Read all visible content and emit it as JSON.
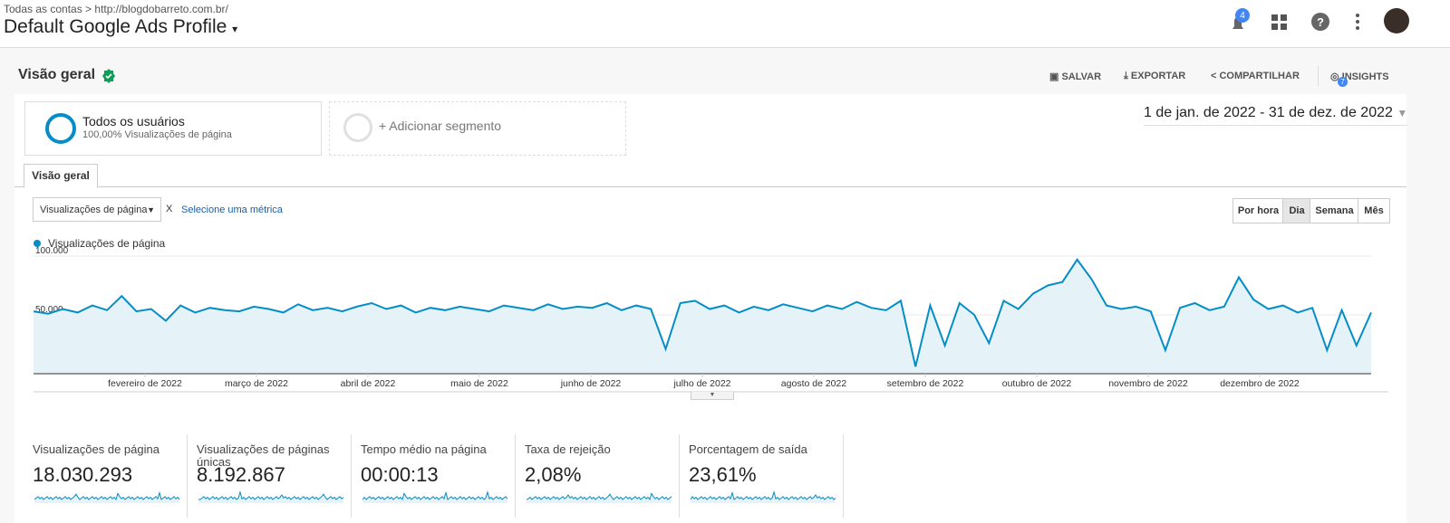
{
  "header": {
    "breadcrumb_root": "Todas as contas",
    "breadcrumb_property": "http://blogdobarreto.com.br/",
    "view_name": "Default Google Ads Profile",
    "notifications": 4
  },
  "toolbar": {
    "title": "Visão geral",
    "save": "SALVAR",
    "export": "EXPORTAR",
    "share": "COMPARTILHAR",
    "insights": "INSIGHTS",
    "insights_count": 7
  },
  "segments": {
    "active_name": "Todos os usuários",
    "active_detail": "100,00% Visualizações de página",
    "add": "+ Adicionar segmento"
  },
  "date_range": "1 de jan. de 2022 - 31 de dez. de 2022",
  "tab": "Visão geral",
  "controls": {
    "metric": "Visualizações de página",
    "remove": "X",
    "select_metric": "Selecione uma métrica",
    "granularity": [
      "Por hora",
      "Dia",
      "Semana",
      "Mês"
    ]
  },
  "chart_data": {
    "type": "line",
    "x_labels": [
      "fevereiro de 2022",
      "março de 2022",
      "abril de 2022",
      "maio de 2022",
      "junho de 2022",
      "julho de 2022",
      "agosto de 2022",
      "setembro de 2022",
      "outubro de 2022",
      "novembro de 2022",
      "dezembro de 2022"
    ],
    "series": [
      {
        "name": "Visualizações de página",
        "color": "#058dc7",
        "values": [
          53000,
          51000,
          55000,
          52000,
          58000,
          54000,
          66000,
          53000,
          55000,
          45000,
          58000,
          52000,
          56000,
          54000,
          53000,
          57000,
          55000,
          52000,
          59000,
          54000,
          56000,
          53000,
          57000,
          60000,
          55000,
          58000,
          52000,
          56000,
          54000,
          57000,
          55000,
          53000,
          58000,
          56000,
          54000,
          59000,
          55000,
          57000,
          56000,
          60000,
          54000,
          58000,
          55000,
          21000,
          60000,
          62000,
          55000,
          58000,
          52000,
          57000,
          54000,
          59000,
          56000,
          53000,
          58000,
          55000,
          61000,
          56000,
          54000,
          62000,
          6000,
          58000,
          24000,
          60000,
          50000,
          26000,
          62000,
          55000,
          68000,
          75000,
          78000,
          97000,
          80000,
          58000,
          55000,
          57000,
          53000,
          20000,
          56000,
          60000,
          54000,
          57000,
          82000,
          63000,
          55000,
          58000,
          52000,
          56000,
          20000,
          54000,
          24000,
          52000
        ]
      }
    ],
    "ylim": [
      0,
      100000
    ],
    "yticks": [
      {
        "value": 50000,
        "label": "50.000"
      },
      {
        "value": 100000,
        "label": "100.000"
      }
    ]
  },
  "metrics": [
    {
      "label": "Visualizações de página",
      "value": "18.030.293"
    },
    {
      "label": "Visualizações de páginas únicas",
      "value": "8.192.867"
    },
    {
      "label": "Tempo médio na página",
      "value": "00:00:13"
    },
    {
      "label": "Taxa de rejeição",
      "value": "2,08%"
    },
    {
      "label": "Porcentagem de saída",
      "value": "23,61%"
    }
  ]
}
